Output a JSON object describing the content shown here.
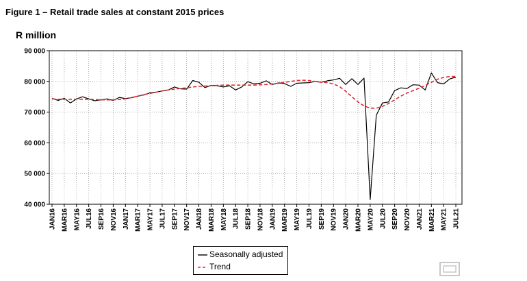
{
  "figure_title": "Figure 1 – Retail trade sales at constant 2015 prices",
  "chart_data": {
    "type": "line",
    "title": "Figure 1 – Retail trade sales at constant 2015 prices",
    "ylabel": "R million",
    "xlabel": "",
    "ylim": [
      40000,
      90000
    ],
    "yticks": [
      40000,
      50000,
      60000,
      70000,
      80000,
      90000
    ],
    "ytick_labels": [
      "40 000",
      "50 000",
      "60 000",
      "70 000",
      "80 000",
      "90 000"
    ],
    "grid": true,
    "legend_position": "bottom-center",
    "x": [
      "JAN16",
      "FEB16",
      "MAR16",
      "APR16",
      "MAY16",
      "JUN16",
      "JUL16",
      "AUG16",
      "SEP16",
      "OCT16",
      "NOV16",
      "DEC16",
      "JAN17",
      "FEB17",
      "MAR17",
      "APR17",
      "MAY17",
      "JUN17",
      "JUL17",
      "AUG17",
      "SEP17",
      "OCT17",
      "NOV17",
      "DEC17",
      "JAN18",
      "FEB18",
      "MAR18",
      "APR18",
      "MAY18",
      "JUN18",
      "JUL18",
      "AUG18",
      "SEP18",
      "OCT18",
      "NOV18",
      "DEC18",
      "JAN19",
      "FEB19",
      "MAR19",
      "APR19",
      "MAY19",
      "JUN19",
      "JUL19",
      "AUG19",
      "SEP19",
      "OCT19",
      "NOV19",
      "DEC19",
      "JAN20",
      "FEB20",
      "MAR20",
      "APR20",
      "MAY20",
      "JUN20",
      "JUL20",
      "AUG20",
      "SEP20",
      "OCT20",
      "NOV20",
      "DEC20",
      "JAN21",
      "FEB21",
      "MAR21",
      "APR21",
      "MAY21",
      "JUN21",
      "JUL21"
    ],
    "x_tick_labels": [
      "JAN16",
      "MAR16",
      "MAY16",
      "JUL16",
      "SEP16",
      "NOV16",
      "JAN17",
      "MAR17",
      "MAY17",
      "JUL17",
      "SEP17",
      "NOV17",
      "JAN18",
      "MAR18",
      "MAY18",
      "JUL18",
      "SEP18",
      "NOV18",
      "JAN19",
      "MAR19",
      "MAY19",
      "JUL19",
      "SEP19",
      "NOV19",
      "JAN20",
      "MAR20",
      "MAY20",
      "JUL20",
      "SEP20",
      "NOV20",
      "JAN21",
      "MAR21",
      "MAY21",
      "JUL21"
    ],
    "series": [
      {
        "name": "Seasonally adjusted",
        "color": "#000000",
        "style": "solid",
        "values": [
          74500,
          73800,
          74500,
          73000,
          74300,
          75000,
          74300,
          73700,
          74000,
          74300,
          73800,
          74800,
          74400,
          74700,
          75200,
          75600,
          76300,
          76500,
          76900,
          77200,
          78200,
          77600,
          77500,
          80300,
          79700,
          78000,
          78700,
          78600,
          78200,
          78600,
          77200,
          78200,
          79900,
          79200,
          79400,
          80200,
          79000,
          79500,
          79300,
          78400,
          79400,
          79500,
          79600,
          80000,
          79700,
          80200,
          80500,
          81000,
          79000,
          80900,
          79000,
          81100,
          41500,
          69000,
          73000,
          73300,
          77000,
          77900,
          77700,
          78900,
          78800,
          77200,
          82800,
          79600,
          79200,
          80800,
          81400
        ]
      },
      {
        "name": "Trend",
        "color": "#e8262b",
        "style": "dashed",
        "values": [
          74300,
          74200,
          74200,
          74200,
          74200,
          74200,
          74200,
          74100,
          74000,
          74000,
          74000,
          74100,
          74300,
          74700,
          75200,
          75700,
          76100,
          76500,
          76900,
          77200,
          77500,
          77700,
          77900,
          78200,
          78400,
          78500,
          78600,
          78700,
          78800,
          78800,
          78800,
          78800,
          78800,
          78800,
          78900,
          79000,
          79200,
          79400,
          79700,
          80000,
          80300,
          80400,
          80300,
          80000,
          79700,
          79600,
          79200,
          78300,
          76800,
          75000,
          73300,
          72000,
          71300,
          71300,
          71900,
          72800,
          74000,
          75200,
          76200,
          77000,
          77800,
          78700,
          79700,
          80700,
          81300,
          81600,
          81600
        ]
      }
    ]
  }
}
